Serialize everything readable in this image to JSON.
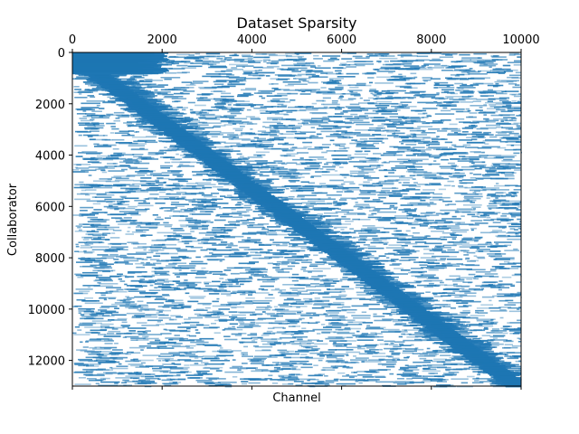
{
  "chart_data": {
    "type": "spy",
    "title": "Dataset Sparsity",
    "xlabel": "Channel",
    "ylabel": "Collaborator",
    "xlim": [
      0,
      10000
    ],
    "ylim": [
      0,
      13000
    ],
    "y_inverted": true,
    "x_ticks": [
      0,
      2000,
      4000,
      6000,
      8000,
      10000
    ],
    "x_tick_labels": [
      "0",
      "2000",
      "4000",
      "6000",
      "8000",
      "10000"
    ],
    "x_tick_labels_position": "top",
    "y_ticks": [
      0,
      2000,
      4000,
      6000,
      8000,
      10000,
      12000
    ],
    "y_tick_labels": [
      "0",
      "2000",
      "4000",
      "6000",
      "8000",
      "10000",
      "12000"
    ],
    "grid": false,
    "mark_color": "#1f77b4",
    "pattern": {
      "description": "dense diagonal band from (0,0) to (10000,13000) over scattered sparse horizontal segments",
      "diagonal_start": [
        0,
        0
      ],
      "diagonal_end": [
        10000,
        13000
      ],
      "dense_block_near_origin": {
        "x": [
          0,
          1800
        ],
        "y": [
          0,
          800
        ]
      }
    }
  }
}
